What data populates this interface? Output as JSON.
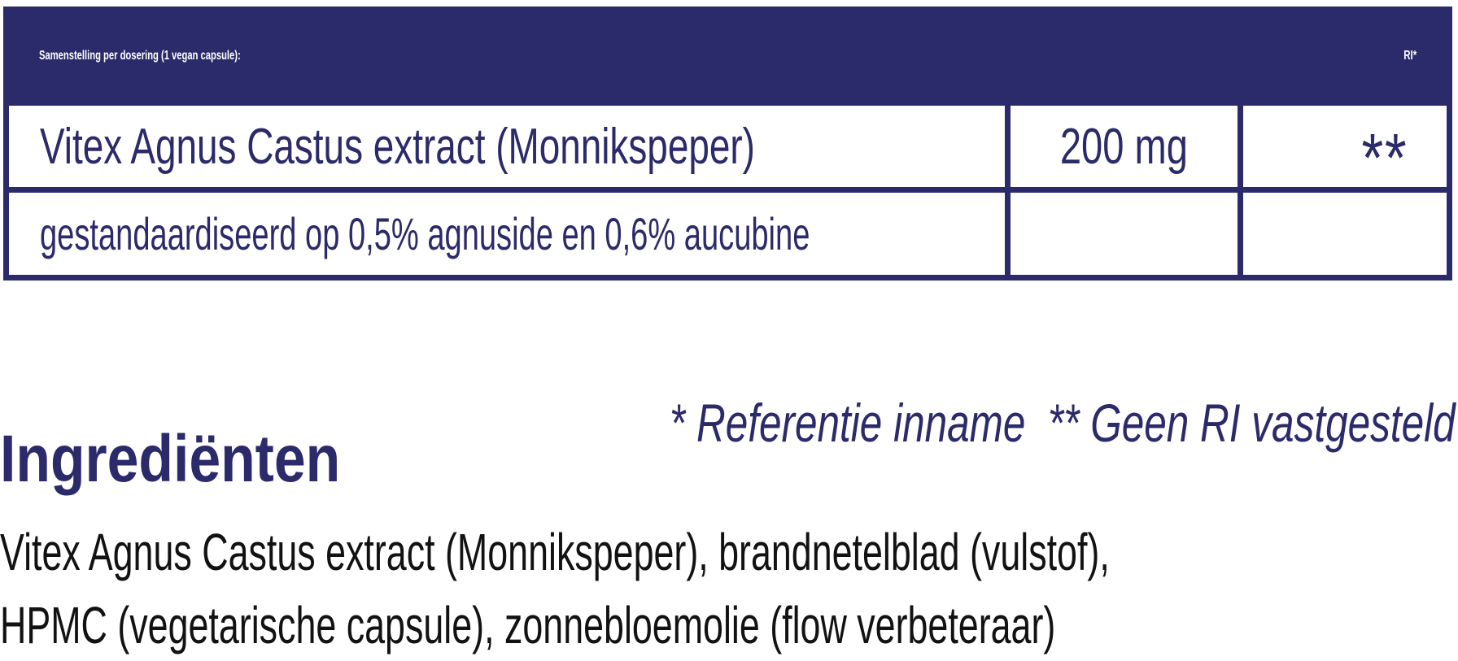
{
  "colors": {
    "navy": "#2b2a6a",
    "body_text": "#121212",
    "header_text": "#ffffff",
    "background": "#ffffff"
  },
  "composition_table": {
    "title": "Samenstelling per dosering (1 vegan capsule):",
    "ri_column_label": "RI*",
    "rows": [
      {
        "name": "Vitex Agnus Castus extract (Monnikspeper)",
        "amount": "200 mg",
        "ri": "**"
      },
      {
        "name": "gestandaardiseerd op 0,5% agnuside en 0,6% aucubine",
        "amount": "",
        "ri": ""
      }
    ]
  },
  "footnote": "* Referentie inname  ** Geen RI vastgesteld",
  "ingredients": {
    "heading": "Ingrediënten",
    "lines": [
      "Vitex Agnus Castus extract (Monnikspeper), brandnetelblad (vulstof),",
      "HPMC (vegetarische capsule), zonnebloemolie (flow verbeteraar)"
    ]
  }
}
